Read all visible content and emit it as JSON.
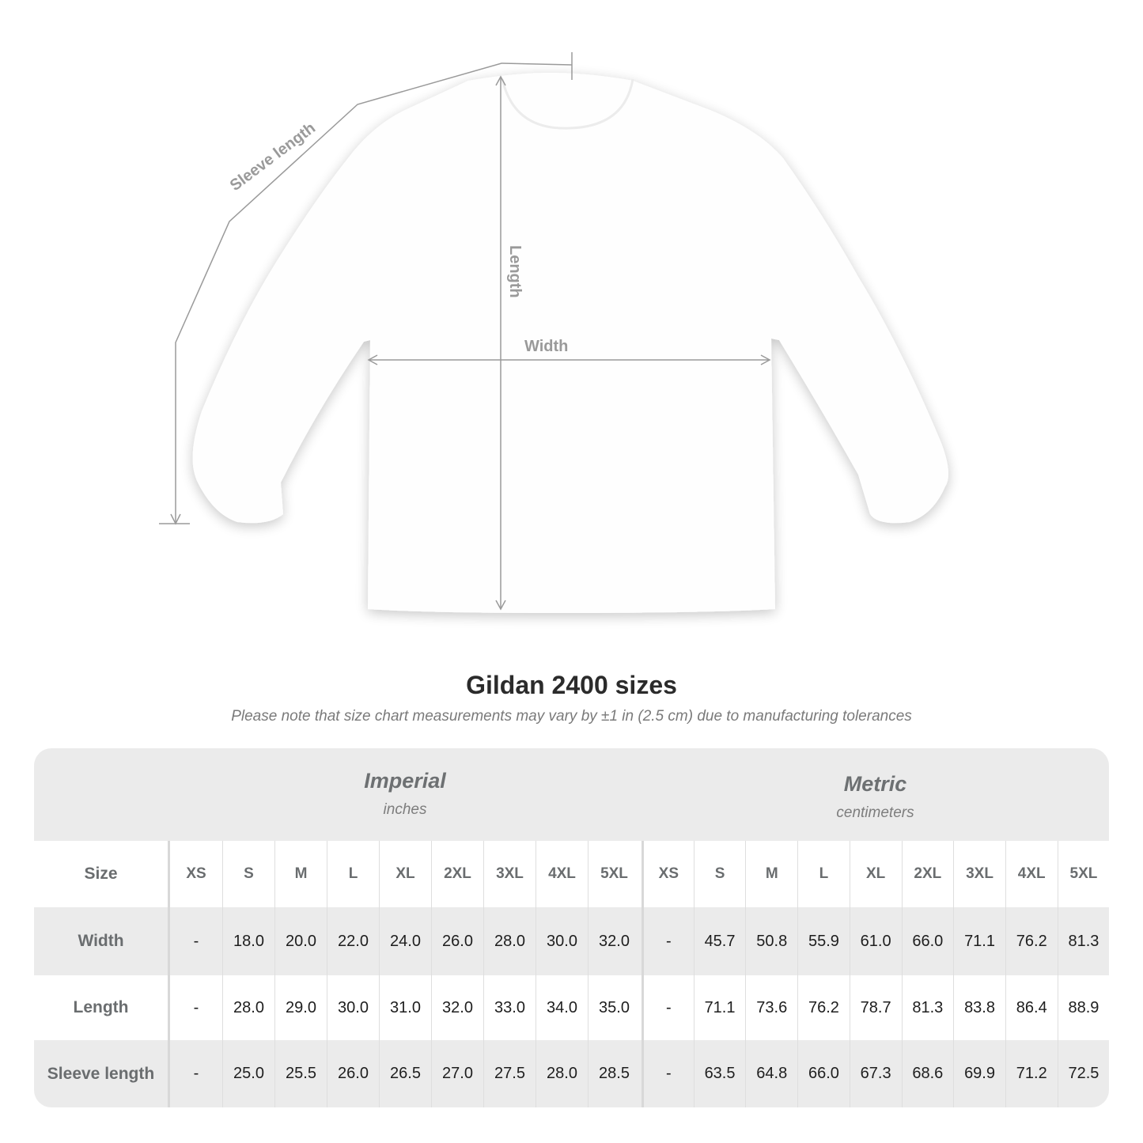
{
  "diagram": {
    "labels": {
      "sleeve": "Sleeve length",
      "length": "Length",
      "width": "Width"
    },
    "line_color": "#9a9a9a"
  },
  "header": {
    "title": "Gildan 2400 sizes",
    "note": "Please note that size chart measurements may vary by ±1 in (2.5 cm) due to manufacturing tolerances"
  },
  "table": {
    "imperial": {
      "name": "Imperial",
      "unit": "inches"
    },
    "metric": {
      "name": "Metric",
      "unit": "centimeters"
    },
    "size_label": "Size",
    "sizes": [
      "XS",
      "S",
      "M",
      "L",
      "XL",
      "2XL",
      "3XL",
      "4XL",
      "5XL"
    ],
    "rows": [
      {
        "label": "Width",
        "imperial": [
          "-",
          "18.0",
          "20.0",
          "22.0",
          "24.0",
          "26.0",
          "28.0",
          "30.0",
          "32.0"
        ],
        "metric": [
          "-",
          "45.7",
          "50.8",
          "55.9",
          "61.0",
          "66.0",
          "71.1",
          "76.2",
          "81.3"
        ]
      },
      {
        "label": "Length",
        "imperial": [
          "-",
          "28.0",
          "29.0",
          "30.0",
          "31.0",
          "32.0",
          "33.0",
          "34.0",
          "35.0"
        ],
        "metric": [
          "-",
          "71.1",
          "73.6",
          "76.2",
          "78.7",
          "81.3",
          "83.8",
          "86.4",
          "88.9"
        ]
      },
      {
        "label": "Sleeve length",
        "imperial": [
          "-",
          "25.0",
          "25.5",
          "26.0",
          "26.5",
          "27.0",
          "27.5",
          "28.0",
          "28.5"
        ],
        "metric": [
          "-",
          "63.5",
          "64.8",
          "66.0",
          "67.3",
          "68.6",
          "69.9",
          "71.2",
          "72.5"
        ]
      }
    ]
  }
}
